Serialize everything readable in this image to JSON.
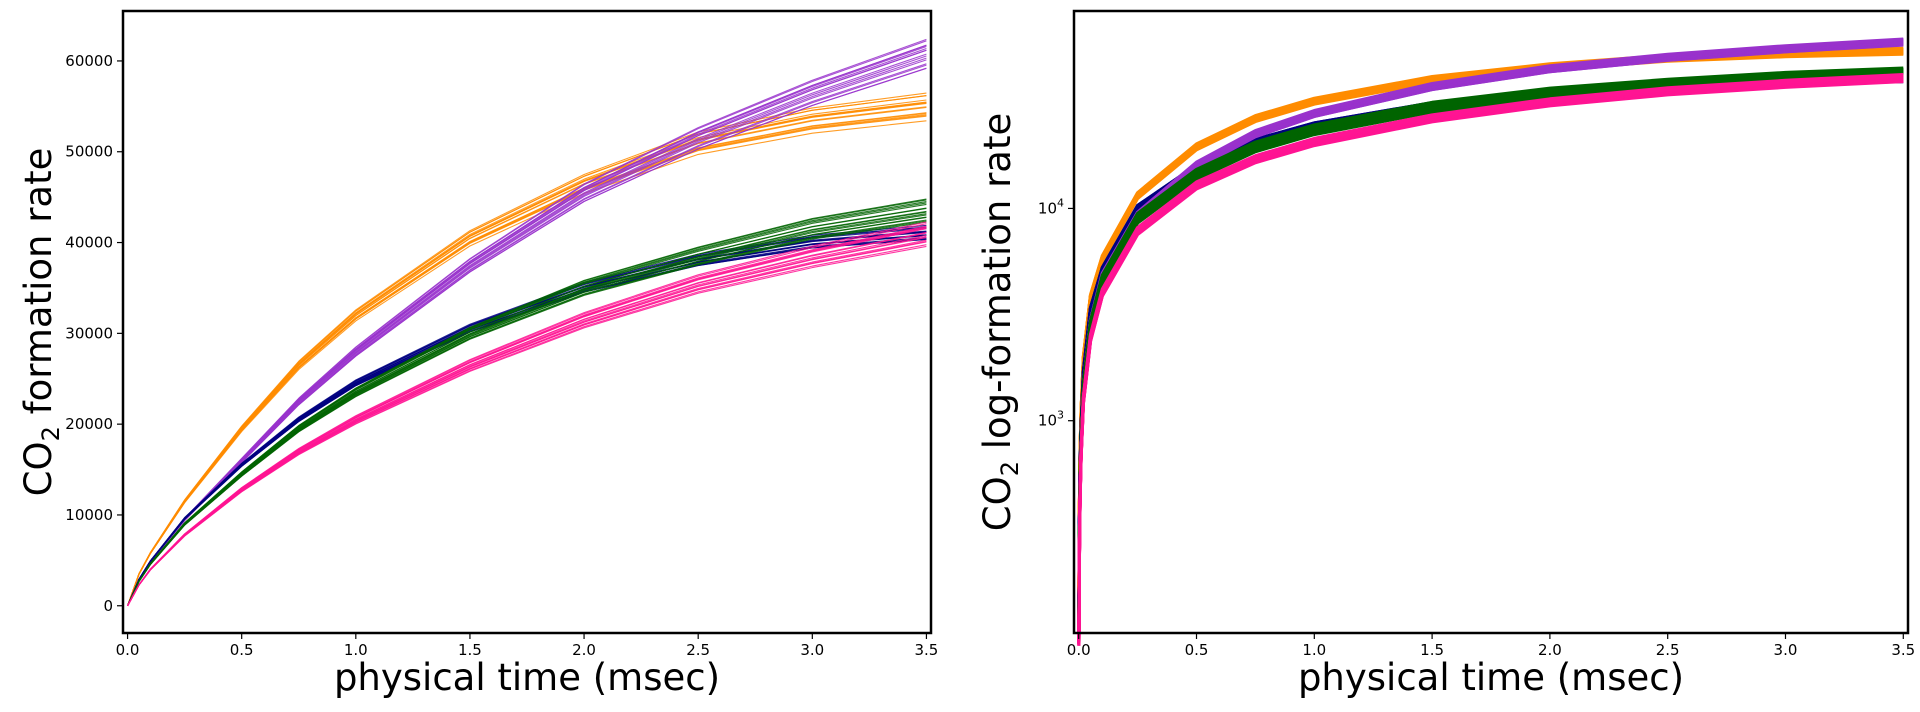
{
  "chart_data": [
    {
      "type": "line",
      "panel": "left",
      "yscale": "linear",
      "xlabel": "physical time (msec)",
      "ylabel_main": "CO",
      "ylabel_sub": "2",
      "ylabel_rest": " formation rate",
      "xlim": [
        -0.02,
        3.52
      ],
      "ylim": [
        -3000,
        65500
      ],
      "xticks": [
        0.0,
        0.5,
        1.0,
        1.5,
        2.0,
        2.5,
        3.0,
        3.5
      ],
      "xtick_labels": [
        "0.0",
        "0.5",
        "1.0",
        "1.5",
        "2.0",
        "2.5",
        "3.0",
        "3.5"
      ],
      "yticks": [
        0,
        10000,
        20000,
        30000,
        40000,
        50000,
        60000
      ],
      "ytick_labels": [
        "0",
        "10000",
        "20000",
        "30000",
        "40000",
        "50000",
        "60000"
      ],
      "x": [
        0,
        0.05,
        0.1,
        0.25,
        0.5,
        0.75,
        1.0,
        1.5,
        2.0,
        2.5,
        3.0,
        3.5
      ],
      "series": [
        {
          "name": "orange",
          "color": "#ff8c00",
          "values": [
            0,
            3500,
            5800,
            11500,
            19500,
            26500,
            32000,
            40500,
            46500,
            51000,
            53500,
            55000
          ],
          "spread": 0.025
        },
        {
          "name": "purple",
          "color": "#9932cc",
          "values": [
            0,
            2900,
            4900,
            9500,
            16000,
            22500,
            28000,
            37500,
            45500,
            51500,
            56500,
            60800
          ],
          "spread": 0.025
        },
        {
          "name": "navy",
          "color": "#000080",
          "values": [
            0,
            2900,
            4900,
            9600,
            15500,
            20500,
            24500,
            30500,
            35000,
            38000,
            40000,
            41000
          ],
          "spread": 0.02
        },
        {
          "name": "green",
          "color": "#006400",
          "values": [
            0,
            2700,
            4600,
            9000,
            14500,
            19500,
            23500,
            30000,
            35000,
            38500,
            41500,
            43500
          ],
          "spread": 0.03
        },
        {
          "name": "pink",
          "color": "#ff1493",
          "values": [
            0,
            2300,
            4000,
            7800,
            12800,
            17000,
            20500,
            26500,
            31500,
            35500,
            38500,
            41000
          ],
          "spread": 0.03
        }
      ]
    },
    {
      "type": "line",
      "panel": "right",
      "yscale": "log",
      "xlabel": "physical time (msec)",
      "ylabel_main": "CO",
      "ylabel_sub": "2",
      "ylabel_rest": " log-formation rate",
      "xlim": [
        -0.02,
        3.52
      ],
      "ylim_log10": [
        2.0,
        4.93
      ],
      "xticks": [
        0.0,
        0.5,
        1.0,
        1.5,
        2.0,
        2.5,
        3.0,
        3.5
      ],
      "xtick_labels": [
        "0.0",
        "0.5",
        "1.0",
        "1.5",
        "2.0",
        "2.5",
        "3.0",
        "3.5"
      ],
      "yticks": [
        1000,
        10000
      ],
      "ytick_base": "10",
      "ytick_exponents": [
        "3",
        "4"
      ],
      "x": [
        0.001,
        0.003,
        0.006,
        0.01,
        0.02,
        0.05,
        0.1,
        0.25,
        0.5,
        0.75,
        1.0,
        1.5,
        2.0,
        2.5,
        3.0,
        3.5
      ],
      "series": [
        {
          "name": "orange",
          "color": "#ff8c00",
          "values": [
            130,
            360,
            700,
            1080,
            1950,
            3800,
            5800,
            11500,
            19500,
            26500,
            32000,
            40500,
            46500,
            51000,
            53500,
            55000
          ],
          "spread": 0.03
        },
        {
          "name": "navy",
          "color": "#000080",
          "values": [
            110,
            300,
            580,
            900,
            1650,
            3300,
            5100,
            10000,
            15500,
            20500,
            24500,
            30500,
            35000,
            38000,
            40000,
            41000
          ],
          "spread": 0.03
        },
        {
          "name": "purple",
          "color": "#9932cc",
          "values": [
            100,
            270,
            520,
            800,
            1450,
            2900,
            4800,
            9300,
            16000,
            22500,
            28000,
            37500,
            45500,
            51500,
            56500,
            60800
          ],
          "spread": 0.03
        },
        {
          "name": "green",
          "color": "#006400",
          "values": [
            100,
            270,
            510,
            780,
            1420,
            2800,
            4600,
            9000,
            14500,
            19500,
            23500,
            30000,
            35000,
            38500,
            41500,
            43500
          ],
          "spread": 0.045
        },
        {
          "name": "pink",
          "color": "#ff1493",
          "values": [
            90,
            240,
            450,
            700,
            1250,
            2450,
            4000,
            7800,
            12800,
            17000,
            20500,
            26500,
            31500,
            35500,
            38500,
            41000
          ],
          "spread": 0.035
        }
      ]
    }
  ]
}
